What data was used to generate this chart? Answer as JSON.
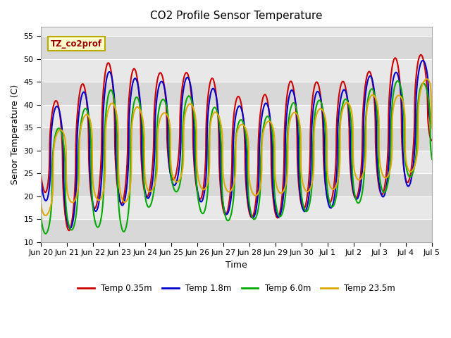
{
  "title": "CO2 Profile Sensor Temperature",
  "ylabel": "Senor Temperature (C)",
  "xlabel": "Time",
  "ylim": [
    10,
    57
  ],
  "yticks": [
    10,
    15,
    20,
    25,
    30,
    35,
    40,
    45,
    50,
    55
  ],
  "annotation_text": "TZ_co2prof",
  "annotation_bg": "#ffffcc",
  "annotation_border": "#bbaa00",
  "plot_bg": "#e8e8e8",
  "lines": [
    {
      "label": "Temp 0.35m",
      "color": "#cc0000",
      "lw": 1.5
    },
    {
      "label": "Temp 1.8m",
      "color": "#0000cc",
      "lw": 1.5
    },
    {
      "label": "Temp 6.0m",
      "color": "#00aa00",
      "lw": 1.5
    },
    {
      "label": "Temp 23.5m",
      "color": "#ddaa00",
      "lw": 1.5
    }
  ],
  "xtick_labels": [
    "Jun 20",
    "Jun 21",
    "Jun 22",
    "Jun 23",
    "Jun 24",
    "Jun 25",
    "Jun 26",
    "Jun 27",
    "Jun 28",
    "Jun 29",
    "Jun 30",
    "Jul 1",
    "Jul 2",
    "Jul 3",
    "Jul 4",
    "Jul 5"
  ],
  "start_day": 0,
  "end_day": 15
}
